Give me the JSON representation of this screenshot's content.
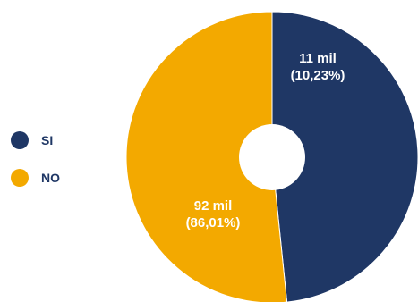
{
  "chart_data": {
    "type": "pie",
    "donut": true,
    "legend_position": "left",
    "slices": [
      {
        "name": "SI",
        "value": 11,
        "value_label": "11 mil",
        "percent_label": "(10,23%)",
        "color": "#1f3765"
      },
      {
        "name": "NO",
        "value": 92,
        "value_label": "92 mil",
        "percent_label": "(86,01%)",
        "color": "#f3a900"
      }
    ],
    "draw_fraction_first": 0.4838
  }
}
